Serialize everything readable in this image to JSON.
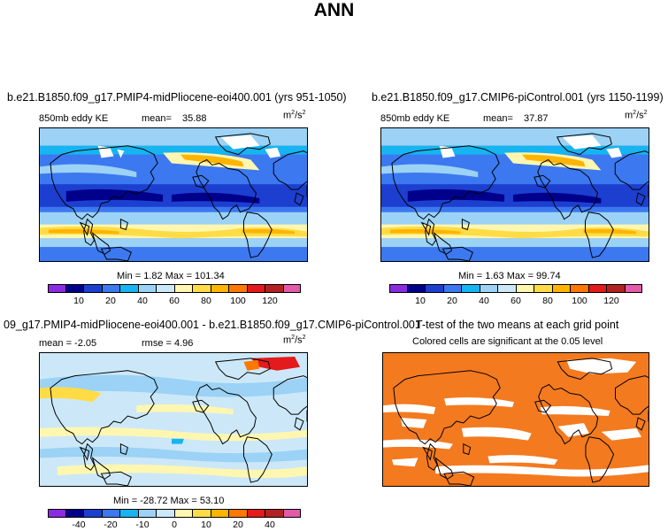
{
  "title": "ANN",
  "panels": [
    {
      "title": "b.e21.B1850.f09_g17.PMIP4-midPliocene-eoi400.001 (yrs 951-1050)",
      "left_label": "850mb  eddy KE",
      "mean_label": "mean=",
      "mean_value": "35.88",
      "units": "m",
      "units_sup": "2",
      "units_denom": "/s",
      "units_sup2": "2",
      "minmax_text": "Min =    1.82  Max =  101.34",
      "colorbar_ticks": [
        "10",
        "20",
        "40",
        "60",
        "80",
        "100",
        "120"
      ]
    },
    {
      "title": "b.e21.B1850.f09_g17.CMIP6-piControl.001 (yrs 1150-1199)",
      "left_label": "850mb  eddy KE",
      "mean_label": "mean=",
      "mean_value": "37.87",
      "units": "m",
      "units_sup": "2",
      "units_denom": "/s",
      "units_sup2": "2",
      "minmax_text": "Min =    1.63  Max =   99.74",
      "colorbar_ticks": [
        "10",
        "20",
        "40",
        "60",
        "80",
        "100",
        "120"
      ]
    },
    {
      "title": "09_g17.PMIP4-midPliocene-eoi400.001 - b.e21.B1850.f09_g17.CMIP6-piControl.001",
      "left_label": "mean =   -2.05",
      "rmse_label": "rmse =    4.96",
      "units": "m",
      "units_sup": "2",
      "units_denom": "/s",
      "units_sup2": "2",
      "minmax_text": "Min = -28.72  Max =   53.10",
      "colorbar_ticks": [
        "-40",
        "-20",
        "-10",
        "0",
        "10",
        "20",
        "40"
      ]
    },
    {
      "title": "T-test of the two means at each grid point",
      "subtitle": "Colored cells are significant at the 0.05 level"
    }
  ],
  "colors": {
    "abs_colorbar": [
      "#8a2be2",
      "#00008b",
      "#1c3fd0",
      "#3c78f0",
      "#16b4f0",
      "#9bd2f5",
      "#cce8f8",
      "#fff7b0",
      "#ffdc46",
      "#ffb400",
      "#ff7800",
      "#e41a1c",
      "#b22222",
      "#e35aa8"
    ],
    "diff_colorbar": [
      "#8a2be2",
      "#00008b",
      "#1c3fd0",
      "#3c78f0",
      "#16b4f0",
      "#9bd2f5",
      "#cce8f8",
      "#fff7b0",
      "#ffdc46",
      "#ffb400",
      "#ff7800",
      "#e41a1c",
      "#b22222",
      "#e35aa8"
    ],
    "significance": "#f47a1f"
  }
}
